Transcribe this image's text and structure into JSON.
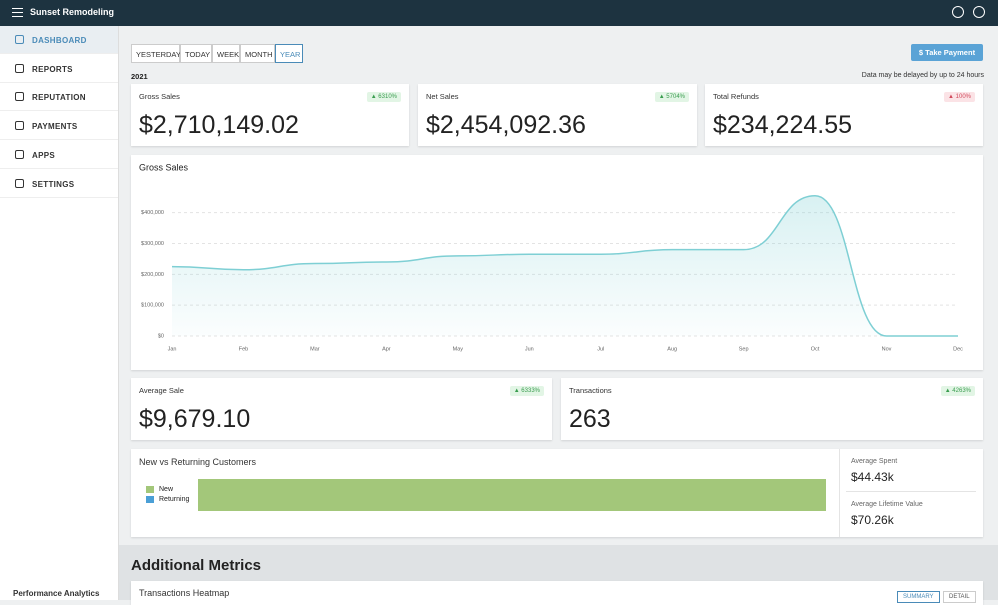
{
  "header": {
    "title": "Sunset Remodeling"
  },
  "sidebar": {
    "items": [
      "DASHBOARD",
      "REPORTS",
      "REPUTATION",
      "PAYMENTS",
      "APPS",
      "SETTINGS"
    ],
    "footer": "Performance Analytics"
  },
  "toolbar": {
    "ranges": [
      "YESTERDAY",
      "TODAY",
      "WEEK",
      "MONTH",
      "YEAR"
    ],
    "year": "2021",
    "button": "$ Take Payment",
    "note": "Data may be delayed by up to 24 hours"
  },
  "cards": [
    {
      "label": "Gross Sales",
      "badge": "▲ 6310%",
      "value": "$2,710,149.02"
    },
    {
      "label": "Net Sales",
      "badge": "▲ 5704%",
      "value": "$2,454,092.36"
    },
    {
      "label": "Total Refunds",
      "badge": "▲ 100%",
      "value": "$234,224.55"
    }
  ],
  "chart_data": {
    "type": "line",
    "title": "Gross Sales",
    "categories": [
      "Jan",
      "Feb",
      "Mar",
      "Apr",
      "May",
      "Jun",
      "Jul",
      "Aug",
      "Sep",
      "Oct",
      "Nov",
      "Dec"
    ],
    "series": [
      {
        "name": "Gross Sales",
        "color": "#7ecfd4",
        "values": [
          225000,
          215000,
          235000,
          240000,
          260000,
          265000,
          265000,
          280000,
          280000,
          455000,
          0,
          0
        ]
      }
    ],
    "ylim": [
      0,
      480000
    ],
    "yticks": [
      {
        "value": 0,
        "label": "$0"
      },
      {
        "value": 100000,
        "label": "$100,000"
      },
      {
        "value": 200000,
        "label": "$200,000"
      },
      {
        "value": 300000,
        "label": "$300,000"
      },
      {
        "value": 400000,
        "label": "$400,000"
      }
    ],
    "grid": true
  },
  "cards2": [
    {
      "label": "Average Sale",
      "badge": "▲ 6333%",
      "value": "$9,679.10"
    },
    {
      "label": "Transactions",
      "badge": "▲ 4263%",
      "value": "263"
    }
  ],
  "customers": {
    "title": "New vs Returning Customers",
    "legend": [
      "New",
      "Returning"
    ],
    "stats": [
      {
        "label": "Average Spent",
        "value": "$44.43k"
      },
      {
        "label": "Average Lifetime Value",
        "value": "$70.26k"
      }
    ]
  },
  "additional": {
    "title": "Additional Metrics",
    "heatmap": "Transactions Heatmap",
    "tabs": [
      "SUMMARY",
      "DETAIL"
    ]
  }
}
